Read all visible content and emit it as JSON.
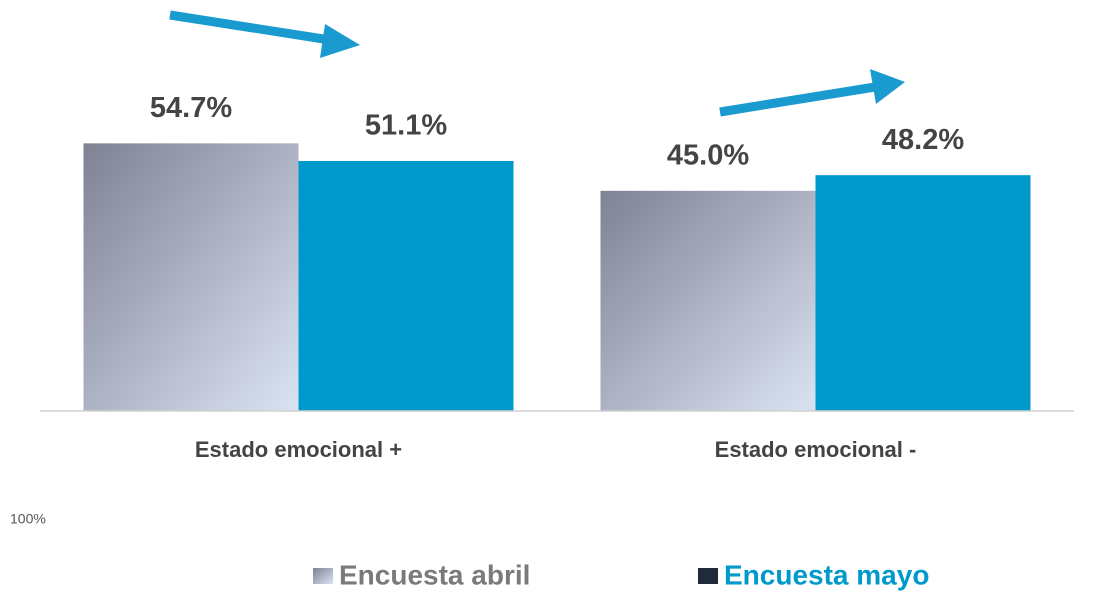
{
  "chart_data": {
    "type": "bar",
    "categories": [
      "Estado emocional +",
      "Estado emocional -"
    ],
    "series": [
      {
        "name": "Encuesta abril",
        "color": "#7f8292",
        "values": [
          54.7,
          45.0
        ],
        "value_labels": [
          "54.7%",
          "45.0%"
        ]
      },
      {
        "name": "Encuesta mayo",
        "color": "#0099cc",
        "values": [
          51.1,
          48.2
        ],
        "value_labels": [
          "51.1%",
          "48.2%"
        ]
      }
    ],
    "ylim": [
      0,
      84
    ],
    "corner_label": "100%",
    "legend": "bottom"
  }
}
